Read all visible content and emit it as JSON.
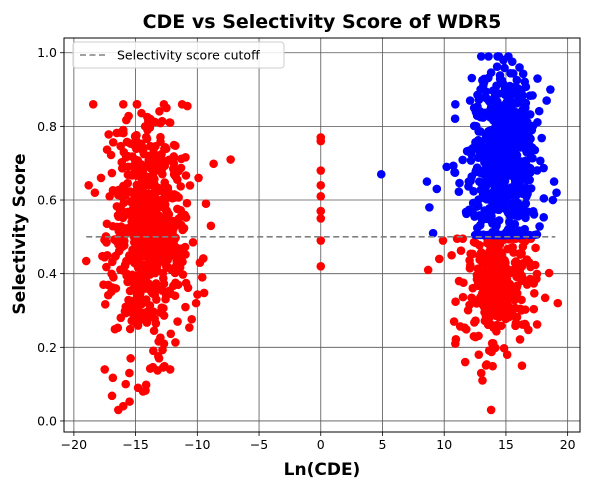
{
  "chart_data": {
    "type": "scatter",
    "title": "CDE vs Selectivity Score of WDR5",
    "xlabel": "Ln(CDE)",
    "ylabel": "Selectivity Score",
    "xlim": [
      -20.8,
      21.0
    ],
    "ylim": [
      -0.03,
      1.04
    ],
    "xticks": [
      -20,
      -15,
      -10,
      -5,
      0,
      5,
      10,
      15,
      20
    ],
    "yticks": [
      0.0,
      0.2,
      0.4,
      0.6,
      0.8,
      1.0
    ],
    "xtick_labels": [
      "−20",
      "−15",
      "−10",
      "−5",
      "0",
      "5",
      "10",
      "15",
      "20"
    ],
    "ytick_labels": [
      "0.0",
      "0.2",
      "0.4",
      "0.6",
      "0.8",
      "1.0"
    ],
    "grid": true,
    "legend": {
      "position": "top-left",
      "entries": [
        "Selectivity score cutoff"
      ]
    },
    "cutoff": {
      "label": "Selectivity score cutoff",
      "y": 0.5,
      "x": [
        -19,
        19
      ],
      "color": "#808080",
      "style": "dashed"
    },
    "colors": {
      "below_cutoff": "#ff0000",
      "above_cutoff": "#0000ff"
    },
    "series": [
      {
        "color": "#ff0000",
        "points": [
          [
            -14.9,
            0.86
          ],
          [
            -12.5,
            0.85
          ],
          [
            -13.8,
            0.82
          ],
          [
            -12.2,
            0.81
          ],
          [
            -16.0,
            0.79
          ],
          [
            -7.3,
            0.71
          ],
          [
            -18.8,
            0.64
          ],
          [
            -18.3,
            0.62
          ],
          [
            -17.8,
            0.66
          ],
          [
            -17.1,
            0.61
          ],
          [
            -16.6,
            0.49
          ],
          [
            -16.8,
            0.39
          ],
          [
            -17.6,
            0.37
          ],
          [
            -17.3,
            0.45
          ],
          [
            -15.8,
            0.31
          ],
          [
            -16.2,
            0.28
          ],
          [
            -11.8,
            0.34
          ],
          [
            -10.1,
            0.32
          ],
          [
            -9.6,
            0.39
          ],
          [
            -9.3,
            0.59
          ],
          [
            -9.9,
            0.66
          ],
          [
            -8.9,
            0.53
          ],
          [
            -17.5,
            0.14
          ],
          [
            -16.4,
            0.03
          ],
          [
            -16.0,
            0.04
          ],
          [
            -15.8,
            0.1
          ],
          [
            -15.5,
            0.13
          ],
          [
            -14.8,
            0.09
          ],
          [
            -14.4,
            0.08
          ],
          [
            -12.2,
            0.14
          ],
          [
            -15.4,
            0.17
          ],
          [
            -13.1,
            0.17
          ],
          [
            -12.7,
            0.21
          ],
          [
            -11.6,
            0.27
          ],
          [
            0.0,
            0.77
          ],
          [
            0.0,
            0.76
          ],
          [
            0.0,
            0.68
          ],
          [
            0.0,
            0.64
          ],
          [
            0.0,
            0.61
          ],
          [
            0.0,
            0.57
          ],
          [
            0.0,
            0.55
          ],
          [
            0.0,
            0.49
          ],
          [
            0.0,
            0.42
          ],
          [
            8.7,
            0.41
          ],
          [
            9.6,
            0.44
          ],
          [
            9.9,
            0.49
          ],
          [
            10.6,
            0.45
          ],
          [
            11.2,
            0.38
          ],
          [
            10.8,
            0.27
          ],
          [
            10.9,
            0.21
          ],
          [
            11.7,
            0.16
          ],
          [
            12.4,
            0.23
          ],
          [
            12.8,
            0.18
          ],
          [
            13.0,
            0.13
          ],
          [
            13.1,
            0.11
          ],
          [
            13.8,
            0.03
          ],
          [
            15.1,
            0.18
          ],
          [
            16.3,
            0.15
          ],
          [
            16.6,
            0.26
          ],
          [
            16.9,
            0.43
          ],
          [
            19.2,
            0.32
          ],
          [
            17.4,
            0.47
          ]
        ],
        "clusters": [
          {
            "cx": -14.0,
            "sx": 1.5,
            "cy": 0.5,
            "sy": 0.16,
            "n": 520,
            "ymin": 0.02,
            "ymax": 0.86,
            "xmin": -19.0,
            "xmax": -8.5
          },
          {
            "cx": -13.6,
            "sx": 1.2,
            "cy": 0.58,
            "sy": 0.1,
            "n": 160,
            "ymin": 0.3,
            "ymax": 0.8,
            "xmin": -18.0,
            "xmax": -9.0
          },
          {
            "cx": 14.4,
            "sx": 1.3,
            "cy": 0.38,
            "sy": 0.08,
            "n": 340,
            "ymin": 0.12,
            "ymax": 0.495,
            "xmin": 10.0,
            "xmax": 18.5
          }
        ]
      },
      {
        "color": "#0000ff",
        "points": [
          [
            4.9,
            0.67
          ],
          [
            8.8,
            0.58
          ],
          [
            9.1,
            0.51
          ],
          [
            8.6,
            0.65
          ],
          [
            9.4,
            0.63
          ],
          [
            10.2,
            0.69
          ],
          [
            10.9,
            0.86
          ],
          [
            12.1,
            0.87
          ],
          [
            13.0,
            0.99
          ],
          [
            14.8,
            0.98
          ],
          [
            15.2,
            0.99
          ],
          [
            16.1,
            0.96
          ],
          [
            18.6,
            0.9
          ],
          [
            18.3,
            0.87
          ],
          [
            18.9,
            0.65
          ],
          [
            19.1,
            0.62
          ],
          [
            18.8,
            0.6
          ]
        ],
        "clusters": [
          {
            "cx": 14.7,
            "sx": 1.4,
            "cy": 0.68,
            "sy": 0.12,
            "n": 520,
            "ymin": 0.505,
            "ymax": 0.99,
            "xmin": 10.0,
            "xmax": 19.0
          },
          {
            "cx": 15.2,
            "sx": 1.0,
            "cy": 0.82,
            "sy": 0.08,
            "n": 140,
            "ymin": 0.62,
            "ymax": 0.99,
            "xmin": 11.0,
            "xmax": 18.5
          }
        ]
      }
    ]
  }
}
